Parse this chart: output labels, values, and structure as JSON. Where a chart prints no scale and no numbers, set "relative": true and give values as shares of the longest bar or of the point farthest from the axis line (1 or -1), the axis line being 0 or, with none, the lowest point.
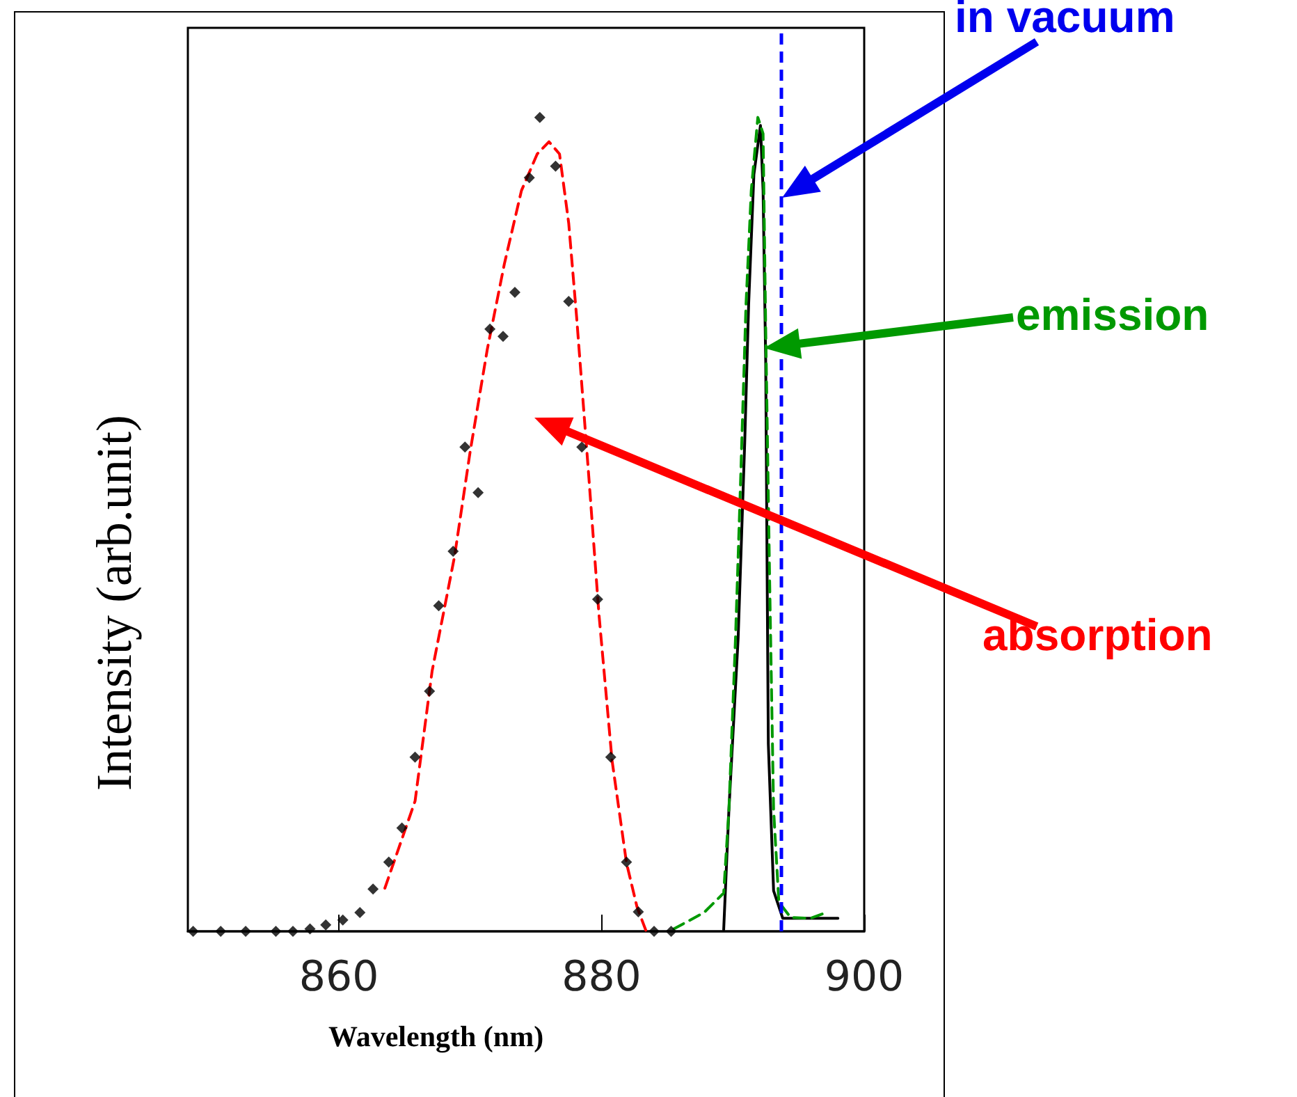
{
  "chart_data": {
    "type": "scatter",
    "xlabel": "Wavelength (nm)",
    "ylabel": "Intensity (arb.unit)",
    "relative": true,
    "xlim": [
      848.5,
      900
    ],
    "xticks": [
      860,
      880,
      900
    ],
    "grid": false,
    "series": [
      {
        "color": "#000000",
        "marker": "diamond",
        "x": [
          848.9,
          851.0,
          852.9,
          855.2,
          856.5,
          857.8,
          859.0,
          860.3,
          861.6,
          862.6,
          863.8,
          864.8,
          865.8,
          866.9,
          867.6,
          868.7,
          869.6,
          870.6,
          871.5,
          872.5,
          873.4,
          874.5,
          875.3,
          876.5,
          877.5,
          878.5,
          879.7,
          880.7,
          881.9,
          882.8,
          884.0,
          885.3
        ],
        "values": [
          0,
          0,
          0,
          0,
          0,
          0.003,
          0.008,
          0.014,
          0.023,
          0.052,
          0.085,
          0.127,
          0.214,
          0.295,
          0.4,
          0.467,
          0.595,
          0.539,
          0.74,
          0.731,
          0.785,
          0.926,
          1.0,
          0.94,
          0.774,
          0.595,
          0.408,
          0.214,
          0.085,
          0.024,
          0,
          0
        ]
      },
      {
        "type": "line",
        "color": "#ff0000",
        "line_style": "dashed",
        "marker": "none",
        "x": [
          863.5,
          865.8,
          867.1,
          868.8,
          870.0,
          871.3,
          872.6,
          873.9,
          875.1,
          876.0,
          876.8,
          877.5,
          878.1,
          879.0,
          879.8,
          880.8,
          881.9,
          882.7,
          883.4
        ],
        "values": [
          0.053,
          0.16,
          0.32,
          0.46,
          0.59,
          0.715,
          0.82,
          0.91,
          0.955,
          0.97,
          0.955,
          0.87,
          0.755,
          0.565,
          0.39,
          0.21,
          0.084,
          0.03,
          0
        ]
      },
      {
        "type": "line",
        "color": "#000000",
        "line_style": "solid",
        "marker": "none",
        "x": [
          889.3,
          889.7,
          890.4,
          890.9,
          891.2,
          891.6,
          892.1,
          892.3,
          892.5,
          892.6,
          892.7,
          893.1,
          893.8,
          898.0
        ],
        "values": [
          0.002,
          0.15,
          0.36,
          0.6,
          0.77,
          0.93,
          0.99,
          0.91,
          0.7,
          0.46,
          0.23,
          0.05,
          0.016,
          0.016
        ]
      },
      {
        "type": "line",
        "color": "#009900",
        "line_style": "dashed",
        "marker": "none",
        "x": [
          885.5,
          887.8,
          889.3,
          889.7,
          890.2,
          890.6,
          891.0,
          891.4,
          891.9,
          892.3,
          892.5,
          892.8,
          893.1,
          893.5,
          894.4,
          895.9,
          897.1
        ],
        "values": [
          0.003,
          0.023,
          0.047,
          0.15,
          0.36,
          0.56,
          0.77,
          0.91,
          1.0,
          0.98,
          0.74,
          0.43,
          0.15,
          0.036,
          0.017,
          0.016,
          0.023
        ]
      }
    ],
    "ref_lines": [
      {
        "axis": "x",
        "value": 893.7,
        "color": "#0000ff",
        "line_style": "dashed"
      }
    ],
    "annotations": [
      "in vacuum",
      "emission",
      "absorption"
    ]
  }
}
